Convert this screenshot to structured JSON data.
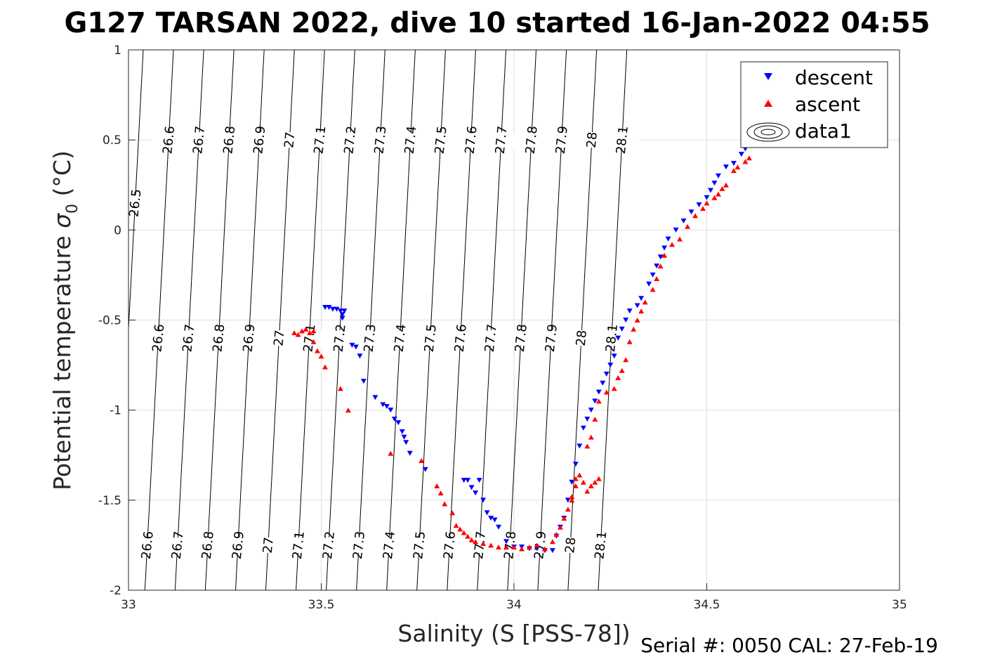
{
  "chart_data": {
    "type": "scatter",
    "title": "G127 TARSAN 2022, dive 10 started 16-Jan-2022 04:55",
    "xlabel": "Salinity (S [PSS-78])",
    "ylabel_main": "Potential temperature ",
    "ylabel_sym": "σ",
    "ylabel_sub": "0",
    "ylabel_unit": " (°C)",
    "footer": "Serial #: 0050  CAL: 27-Feb-19",
    "xlim": [
      33,
      35
    ],
    "ylim": [
      -2,
      1
    ],
    "xticks": [
      33,
      33.5,
      34,
      34.5,
      35
    ],
    "xtick_labels": [
      "33",
      "33.5",
      "34",
      "34.5",
      "35"
    ],
    "yticks": [
      -2,
      -1.5,
      -1,
      -0.5,
      0,
      0.5,
      1
    ],
    "ytick_labels": [
      "-2",
      "-1.5",
      "-1",
      "-0.5",
      "0",
      "0.5",
      "1"
    ],
    "grid": true,
    "legend_position": "top-right",
    "contours": {
      "levels": [
        26.5,
        26.6,
        26.7,
        26.8,
        26.9,
        27,
        27.1,
        27.2,
        27.3,
        27.4,
        27.5,
        27.6,
        27.7,
        27.8,
        27.9,
        28,
        28.1
      ],
      "labels": [
        "26.5",
        "26.6",
        "26.7",
        "26.8",
        "26.9",
        "27",
        "27.1",
        "27.2",
        "27.3",
        "27.4",
        "27.5",
        "27.6",
        "27.7",
        "27.8",
        "27.9",
        "28",
        "28.1"
      ],
      "color": "#000000"
    },
    "series": [
      {
        "name": "descent",
        "marker": "triangle-down",
        "color": "#0000ff",
        "points": [
          [
            33.51,
            -0.43
          ],
          [
            33.52,
            -0.43
          ],
          [
            33.53,
            -0.44
          ],
          [
            33.54,
            -0.44
          ],
          [
            33.55,
            -0.45
          ],
          [
            33.555,
            -0.47
          ],
          [
            33.56,
            -0.45
          ],
          [
            33.555,
            -0.49
          ],
          [
            33.58,
            -0.64
          ],
          [
            33.59,
            -0.65
          ],
          [
            33.6,
            -0.7
          ],
          [
            33.61,
            -0.84
          ],
          [
            33.64,
            -0.93
          ],
          [
            33.66,
            -0.97
          ],
          [
            33.67,
            -0.98
          ],
          [
            33.68,
            -1.0
          ],
          [
            33.69,
            -1.05
          ],
          [
            33.7,
            -1.07
          ],
          [
            33.71,
            -1.12
          ],
          [
            33.715,
            -1.15
          ],
          [
            33.72,
            -1.18
          ],
          [
            33.73,
            -1.24
          ],
          [
            33.77,
            -1.33
          ],
          [
            33.87,
            -1.39
          ],
          [
            33.88,
            -1.39
          ],
          [
            33.89,
            -1.43
          ],
          [
            33.9,
            -1.46
          ],
          [
            33.91,
            -1.39
          ],
          [
            33.92,
            -1.5
          ],
          [
            33.93,
            -1.57
          ],
          [
            33.94,
            -1.6
          ],
          [
            33.95,
            -1.61
          ],
          [
            33.96,
            -1.65
          ],
          [
            33.98,
            -1.73
          ],
          [
            34.0,
            -1.76
          ],
          [
            34.02,
            -1.76
          ],
          [
            34.04,
            -1.77
          ],
          [
            34.06,
            -1.77
          ],
          [
            34.08,
            -1.78
          ],
          [
            34.1,
            -1.78
          ],
          [
            34.11,
            -1.7
          ],
          [
            34.12,
            -1.65
          ],
          [
            34.13,
            -1.6
          ],
          [
            34.14,
            -1.5
          ],
          [
            34.15,
            -1.4
          ],
          [
            34.16,
            -1.3
          ],
          [
            34.17,
            -1.2
          ],
          [
            34.18,
            -1.1
          ],
          [
            34.19,
            -1.05
          ],
          [
            34.2,
            -1.0
          ],
          [
            34.21,
            -0.95
          ],
          [
            34.22,
            -0.9
          ],
          [
            34.23,
            -0.85
          ],
          [
            34.24,
            -0.8
          ],
          [
            34.25,
            -0.75
          ],
          [
            34.26,
            -0.7
          ],
          [
            34.27,
            -0.6
          ],
          [
            34.28,
            -0.55
          ],
          [
            34.29,
            -0.5
          ],
          [
            34.3,
            -0.45
          ],
          [
            34.32,
            -0.42
          ],
          [
            34.33,
            -0.38
          ],
          [
            34.35,
            -0.3
          ],
          [
            34.36,
            -0.25
          ],
          [
            34.37,
            -0.2
          ],
          [
            34.38,
            -0.15
          ],
          [
            34.39,
            -0.1
          ],
          [
            34.4,
            -0.05
          ],
          [
            34.42,
            0.0
          ],
          [
            34.44,
            0.05
          ],
          [
            34.46,
            0.1
          ],
          [
            34.48,
            0.14
          ],
          [
            34.5,
            0.18
          ],
          [
            34.51,
            0.22
          ],
          [
            34.52,
            0.26
          ],
          [
            34.53,
            0.3
          ],
          [
            34.55,
            0.35
          ],
          [
            34.57,
            0.37
          ],
          [
            34.59,
            0.42
          ],
          [
            34.6,
            0.45
          ],
          [
            34.62,
            0.48
          ],
          [
            34.63,
            0.51
          ]
        ]
      },
      {
        "name": "ascent",
        "marker": "triangle-up",
        "color": "#ff0000",
        "points": [
          [
            33.43,
            -0.57
          ],
          [
            33.44,
            -0.58
          ],
          [
            33.45,
            -0.56
          ],
          [
            33.46,
            -0.55
          ],
          [
            33.47,
            -0.57
          ],
          [
            33.48,
            -0.56
          ],
          [
            33.48,
            -0.62
          ],
          [
            33.49,
            -0.67
          ],
          [
            33.5,
            -0.7
          ],
          [
            33.51,
            -0.76
          ],
          [
            33.55,
            -0.88
          ],
          [
            33.57,
            -1.0
          ],
          [
            33.68,
            -1.24
          ],
          [
            33.76,
            -1.28
          ],
          [
            33.8,
            -1.42
          ],
          [
            33.81,
            -1.46
          ],
          [
            33.82,
            -1.52
          ],
          [
            33.84,
            -1.57
          ],
          [
            33.85,
            -1.64
          ],
          [
            33.86,
            -1.66
          ],
          [
            33.87,
            -1.68
          ],
          [
            33.88,
            -1.7
          ],
          [
            33.89,
            -1.72
          ],
          [
            33.9,
            -1.73
          ],
          [
            33.92,
            -1.74
          ],
          [
            33.94,
            -1.75
          ],
          [
            33.96,
            -1.76
          ],
          [
            33.98,
            -1.76
          ],
          [
            34.0,
            -1.76
          ],
          [
            34.02,
            -1.77
          ],
          [
            34.04,
            -1.76
          ],
          [
            34.06,
            -1.75
          ],
          [
            34.08,
            -1.77
          ],
          [
            34.1,
            -1.73
          ],
          [
            34.11,
            -1.69
          ],
          [
            34.12,
            -1.65
          ],
          [
            34.13,
            -1.6
          ],
          [
            34.14,
            -1.55
          ],
          [
            34.15,
            -1.48
          ],
          [
            34.16,
            -1.42
          ],
          [
            34.17,
            -1.36
          ],
          [
            34.18,
            -1.4
          ],
          [
            34.19,
            -1.45
          ],
          [
            34.2,
            -1.42
          ],
          [
            34.21,
            -1.4
          ],
          [
            34.22,
            -1.38
          ],
          [
            34.16,
            -1.38
          ],
          [
            34.15,
            -1.5
          ],
          [
            34.19,
            -1.2
          ],
          [
            34.2,
            -1.15
          ],
          [
            34.21,
            -1.05
          ],
          [
            34.22,
            -0.95
          ],
          [
            34.24,
            -0.9
          ],
          [
            34.26,
            -0.88
          ],
          [
            34.27,
            -0.82
          ],
          [
            34.28,
            -0.78
          ],
          [
            34.29,
            -0.72
          ],
          [
            34.3,
            -0.62
          ],
          [
            34.31,
            -0.55
          ],
          [
            34.32,
            -0.5
          ],
          [
            34.33,
            -0.45
          ],
          [
            34.34,
            -0.4
          ],
          [
            34.36,
            -0.33
          ],
          [
            34.37,
            -0.27
          ],
          [
            34.38,
            -0.2
          ],
          [
            34.39,
            -0.14
          ],
          [
            34.41,
            -0.08
          ],
          [
            34.43,
            -0.05
          ],
          [
            34.45,
            0.02
          ],
          [
            34.47,
            0.08
          ],
          [
            34.49,
            0.12
          ],
          [
            34.5,
            0.15
          ],
          [
            34.52,
            0.18
          ],
          [
            34.53,
            0.2
          ],
          [
            34.54,
            0.23
          ],
          [
            34.55,
            0.25
          ],
          [
            34.57,
            0.33
          ],
          [
            34.58,
            0.35
          ],
          [
            34.6,
            0.38
          ],
          [
            34.61,
            0.4
          ]
        ]
      }
    ]
  }
}
